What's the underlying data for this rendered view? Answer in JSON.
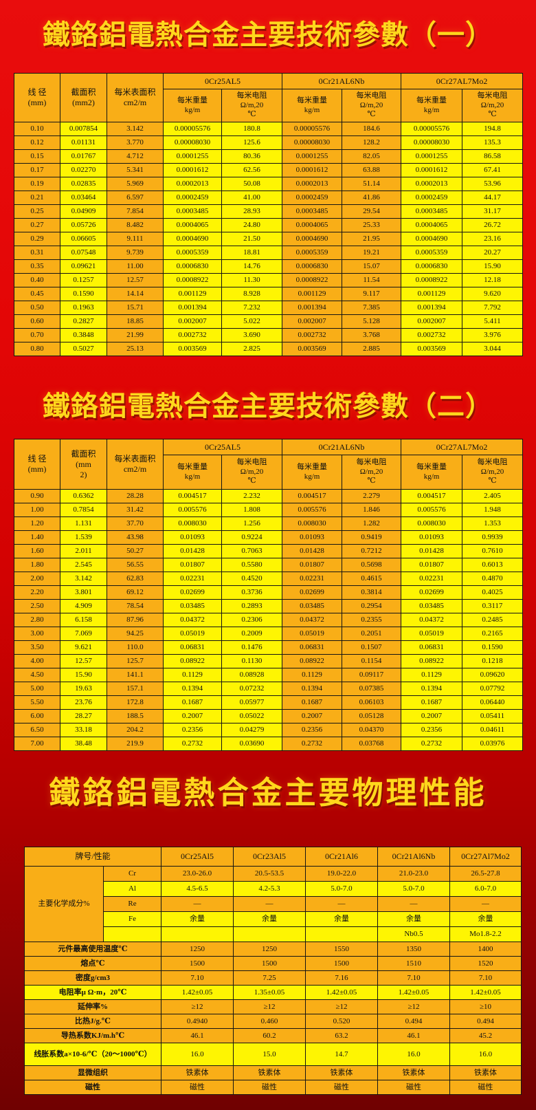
{
  "colors": {
    "bg_top": "#ee1010",
    "bg_bottom": "#6e0000",
    "amber": "#f9ae17",
    "yellow": "#fef502",
    "title": "#ffd81c",
    "border": "#141414",
    "ink": "#111111"
  },
  "titles": {
    "t1": "鐵鉻鋁電熱合金主要技術參數（一）",
    "t2": "鐵鉻鋁電熱合金主要技術參數（二）",
    "t3": "鐵鉻鋁電熱合金主要物理性能"
  },
  "common": {
    "per_meter_weight": "每米重量\nkg/m",
    "per_meter_resistance": "每米电阻\nΩ/m,20\n℃"
  },
  "table1": {
    "col_diameter": "线 径\n(mm)",
    "col_area": "截面积\n(mm2)",
    "col_surface": "每米表面积\ncm2/m",
    "groups": [
      "0Cr25AL5",
      "0Cr21AL6Nb",
      "0Cr27AL7Mo2"
    ],
    "rows": [
      [
        "0.10",
        "0.007854",
        "3.142",
        "0.00005576",
        "180.8",
        "0.00005576",
        "184.6",
        "0.00005576",
        "194.8"
      ],
      [
        "0.12",
        "0.01131",
        "3.770",
        "0.00008030",
        "125.6",
        "0.00008030",
        "128.2",
        "0.00008030",
        "135.3"
      ],
      [
        "0.15",
        "0.01767",
        "4.712",
        "0.0001255",
        "80.36",
        "0.0001255",
        "82.05",
        "0.0001255",
        "86.58"
      ],
      [
        "0.17",
        "0.02270",
        "5.341",
        "0.0001612",
        "62.56",
        "0.0001612",
        "63.88",
        "0.0001612",
        "67.41"
      ],
      [
        "0.19",
        "0.02835",
        "5.969",
        "0.0002013",
        "50.08",
        "0.0002013",
        "51.14",
        "0.0002013",
        "53.96"
      ],
      [
        "0.21",
        "0.03464",
        "6.597",
        "0.0002459",
        "41.00",
        "0.0002459",
        "41.86",
        "0.0002459",
        "44.17"
      ],
      [
        "0.25",
        "0.04909",
        "7.854",
        "0.0003485",
        "28.93",
        "0.0003485",
        "29.54",
        "0.0003485",
        "31.17"
      ],
      [
        "0.27",
        "0.05726",
        "8.482",
        "0.0004065",
        "24.80",
        "0.0004065",
        "25.33",
        "0.0004065",
        "26.72"
      ],
      [
        "0.29",
        "0.06605",
        "9.111",
        "0.0004690",
        "21.50",
        "0.0004690",
        "21.95",
        "0.0004690",
        "23.16"
      ],
      [
        "0.31",
        "0.07548",
        "9.739",
        "0.0005359",
        "18.81",
        "0.0005359",
        "19.21",
        "0.0005359",
        "20.27"
      ],
      [
        "0.35",
        "0.09621",
        "11.00",
        "0.0006830",
        "14.76",
        "0.0006830",
        "15.07",
        "0.0006830",
        "15.90"
      ],
      [
        "0.40",
        "0.1257",
        "12.57",
        "0.0008922",
        "11.30",
        "0.0008922",
        "11.54",
        "0.0008922",
        "12.18"
      ],
      [
        "0.45",
        "0.1590",
        "14.14",
        "0.001129",
        "8.928",
        "0.001129",
        "9.117",
        "0.001129",
        "9.620"
      ],
      [
        "0.50",
        "0.1963",
        "15.71",
        "0.001394",
        "7.232",
        "0.001394",
        "7.385",
        "0.001394",
        "7.792"
      ],
      [
        "0.60",
        "0.2827",
        "18.85",
        "0.002007",
        "5.022",
        "0.002007",
        "5.128",
        "0.002007",
        "5.411"
      ],
      [
        "0.70",
        "0.3848",
        "21.99",
        "0.002732",
        "3.690",
        "0.002732",
        "3.768",
        "0.002732",
        "3.976"
      ],
      [
        "0.80",
        "0.5027",
        "25.13",
        "0.003569",
        "2.825",
        "0.003569",
        "2.885",
        "0.003569",
        "3.044"
      ]
    ]
  },
  "table2": {
    "col_diameter": "线 径\n(mm)",
    "col_area": "截面积\n(mm\n2)",
    "col_surface": "每米表面积\ncm2/m",
    "groups": [
      "0Cr25AL5",
      "0Cr21AL6Nb",
      "0Cr27AL7Mo2"
    ],
    "rows": [
      [
        "0.90",
        "0.6362",
        "28.28",
        "0.004517",
        "2.232",
        "0.004517",
        "2.279",
        "0.004517",
        "2.405"
      ],
      [
        "1.00",
        "0.7854",
        "31.42",
        "0.005576",
        "1.808",
        "0.005576",
        "1.846",
        "0.005576",
        "1.948"
      ],
      [
        "1.20",
        "1.131",
        "37.70",
        "0.008030",
        "1.256",
        "0.008030",
        "1.282",
        "0.008030",
        "1.353"
      ],
      [
        "1.40",
        "1.539",
        "43.98",
        "0.01093",
        "0.9224",
        "0.01093",
        "0.9419",
        "0.01093",
        "0.9939"
      ],
      [
        "1.60",
        "2.011",
        "50.27",
        "0.01428",
        "0.7063",
        "0.01428",
        "0.7212",
        "0.01428",
        "0.7610"
      ],
      [
        "1.80",
        "2.545",
        "56.55",
        "0.01807",
        "0.5580",
        "0.01807",
        "0.5698",
        "0.01807",
        "0.6013"
      ],
      [
        "2.00",
        "3.142",
        "62.83",
        "0.02231",
        "0.4520",
        "0.02231",
        "0.4615",
        "0.02231",
        "0.4870"
      ],
      [
        "2.20",
        "3.801",
        "69.12",
        "0.02699",
        "0.3736",
        "0.02699",
        "0.3814",
        "0.02699",
        "0.4025"
      ],
      [
        "2.50",
        "4.909",
        "78.54",
        "0.03485",
        "0.2893",
        "0.03485",
        "0.2954",
        "0.03485",
        "0.3117"
      ],
      [
        "2.80",
        "6.158",
        "87.96",
        "0.04372",
        "0.2306",
        "0.04372",
        "0.2355",
        "0.04372",
        "0.2485"
      ],
      [
        "3.00",
        "7.069",
        "94.25",
        "0.05019",
        "0.2009",
        "0.05019",
        "0.2051",
        "0.05019",
        "0.2165"
      ],
      [
        "3.50",
        "9.621",
        "110.0",
        "0.06831",
        "0.1476",
        "0.06831",
        "0.1507",
        "0.06831",
        "0.1590"
      ],
      [
        "4.00",
        "12.57",
        "125.7",
        "0.08922",
        "0.1130",
        "0.08922",
        "0.1154",
        "0.08922",
        "0.1218"
      ],
      [
        "4.50",
        "15.90",
        "141.1",
        "0.1129",
        "0.08928",
        "0.1129",
        "0.09117",
        "0.1129",
        "0.09620"
      ],
      [
        "5.00",
        "19.63",
        "157.1",
        "0.1394",
        "0.07232",
        "0.1394",
        "0.07385",
        "0.1394",
        "0.07792"
      ],
      [
        "5.50",
        "23.76",
        "172.8",
        "0.1687",
        "0.05977",
        "0.1687",
        "0.06103",
        "0.1687",
        "0.06440"
      ],
      [
        "6.00",
        "28.27",
        "188.5",
        "0.2007",
        "0.05022",
        "0.2007",
        "0.05128",
        "0.2007",
        "0.05411"
      ],
      [
        "6.50",
        "33.18",
        "204.2",
        "0.2356",
        "0.04279",
        "0.2356",
        "0.04370",
        "0.2356",
        "0.04611"
      ],
      [
        "7.00",
        "38.48",
        "219.9",
        "0.2732",
        "0.03690",
        "0.2732",
        "0.03768",
        "0.2732",
        "0.03976"
      ]
    ]
  },
  "table3": {
    "header_label": "牌号/性能",
    "alloys": [
      "0Cr25Al5",
      "0Cr23Al5",
      "0Cr21Al6",
      "0Cr21Al6Nb",
      "0Cr27Al7Mo2"
    ],
    "chem_label": "主要化学成分%",
    "chem_rows": [
      {
        "element": "Cr",
        "tone": "amber",
        "values": [
          "23.0-26.0",
          "20.5-53.5",
          "19.0-22.0",
          "21.0-23.0",
          "26.5-27.8"
        ]
      },
      {
        "element": "Al",
        "tone": "yellow",
        "values": [
          "4.5-6.5",
          "4.2-5.3",
          "5.0-7.0",
          "5.0-7.0",
          "6.0-7.0"
        ]
      },
      {
        "element": "Re",
        "tone": "amber",
        "values": [
          "—",
          "—",
          "—",
          "—",
          "—"
        ]
      },
      {
        "element": "Fe",
        "tone": "yellow",
        "values": [
          "余量",
          "余量",
          "余量",
          "余量",
          "余量"
        ]
      },
      {
        "element": "",
        "tone": "yellow",
        "values": [
          "",
          "",
          "",
          "Nb0.5",
          "Mo1.8-2.2"
        ]
      }
    ],
    "prop_rows": [
      {
        "label": "元件最高使用温度℃",
        "tone": "amber",
        "tall": false,
        "values": [
          "1250",
          "1250",
          "1550",
          "1350",
          "1400"
        ]
      },
      {
        "label": "熔点℃",
        "tone": "amber",
        "tall": false,
        "values": [
          "1500",
          "1500",
          "1500",
          "1510",
          "1520"
        ]
      },
      {
        "label": "密度g/cm3",
        "tone": "amber",
        "tall": false,
        "values": [
          "7.10",
          "7.25",
          "7.16",
          "7.10",
          "7.10"
        ]
      },
      {
        "label": "电阻率μ Ω·m，20℃",
        "tone": "yellow",
        "tall": false,
        "values": [
          "1.42±0.05",
          "1.35±0.05",
          "1.42±0.05",
          "1.42±0.05",
          "1.42±0.05"
        ]
      },
      {
        "label": "延伸率%",
        "tone": "amber",
        "tall": false,
        "values": [
          "≥12",
          "≥12",
          "≥12",
          "≥12",
          "≥10"
        ]
      },
      {
        "label": "比热J/g.℃",
        "tone": "amber",
        "tall": false,
        "values": [
          "0.4940",
          "0.460",
          "0.520",
          "0.494",
          "0.494"
        ]
      },
      {
        "label": "导热系数KJ/m.h℃",
        "tone": "amber",
        "tall": false,
        "values": [
          "46.1",
          "60.2",
          "63.2",
          "46.1",
          "45.2"
        ]
      },
      {
        "label": "线胀系数a×10-6/℃（20～1000℃）",
        "tone": "yellow",
        "tall": true,
        "values": [
          "16.0",
          "15.0",
          "14.7",
          "16.0",
          "16.0"
        ]
      },
      {
        "label": "显微组织",
        "tone": "amber",
        "tall": false,
        "values": [
          "铁素体",
          "铁素体",
          "铁素体",
          "铁素体",
          "铁素体"
        ]
      },
      {
        "label": "磁性",
        "tone": "amber",
        "tall": false,
        "values": [
          "磁性",
          "磁性",
          "磁性",
          "磁性",
          "磁性"
        ]
      }
    ]
  }
}
